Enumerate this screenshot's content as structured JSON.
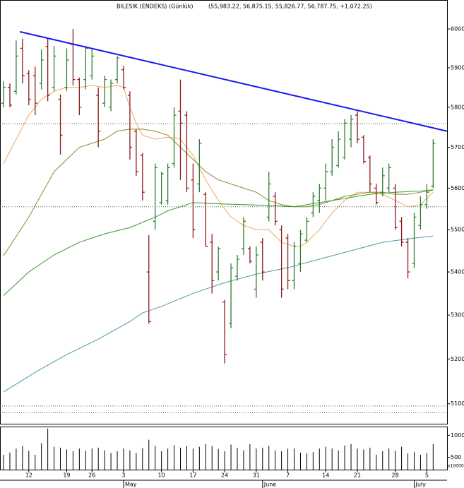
{
  "chart_data": {
    "type": "ohlc",
    "title": "BILESIK (ENDEKS) (Günlük)",
    "subtitle": "(55,983.22, 56,875.15, 55,826.77, 56,787.75, +1,072.25)",
    "categories": [
      null,
      null,
      null,
      null,
      "12",
      null,
      null,
      null,
      null,
      null,
      "19",
      null,
      null,
      null,
      "26",
      null,
      null,
      null,
      null,
      "3",
      null,
      null,
      null,
      null,
      null,
      "10",
      null,
      null,
      null,
      null,
      "17",
      null,
      null,
      null,
      null,
      "24",
      null,
      null,
      null,
      null,
      "31",
      null,
      null,
      null,
      null,
      "7",
      null,
      null,
      null,
      null,
      null,
      "14",
      null,
      null,
      null,
      null,
      "21",
      null,
      null,
      null,
      null,
      null,
      "28",
      null,
      null,
      null,
      null,
      "5",
      null
    ],
    "months": [
      {
        "label": "May",
        "at": 19
      },
      {
        "label": "June",
        "at": 41
      },
      {
        "label": "July",
        "at": 65
      }
    ],
    "open": [
      5810,
      5850,
      5840,
      5950,
      5885,
      5880,
      5860,
      5955,
      5850,
      5820,
      5850,
      5960,
      5870,
      5870,
      5880,
      5830,
      5810,
      5800,
      5870,
      5895,
      5830,
      5740,
      5680,
      5400,
      5520,
      5565,
      5570,
      5660,
      5790,
      5780,
      5620,
      5610,
      5585,
      5470,
      5400,
      5330,
      5280,
      5390,
      5455,
      5455,
      5360,
      5470,
      5530,
      5580,
      5500,
      5480,
      5380,
      5420,
      5475,
      5540,
      5570,
      5600,
      5640,
      5655,
      5675,
      5720,
      5780,
      5725,
      5675,
      5600,
      5590,
      5600,
      5600,
      5520,
      5470,
      5420,
      5510,
      5560,
      5605
    ],
    "high": [
      5865,
      5860,
      5970,
      5975,
      5894,
      5903,
      5947,
      5975,
      5956,
      5832,
      5950,
      6000,
      5875,
      5956,
      5947,
      5850,
      5880,
      5870,
      5930,
      5905,
      5840,
      5745,
      5686,
      5487,
      5660,
      5640,
      5660,
      5800,
      5870,
      5790,
      5660,
      5720,
      5590,
      5490,
      5460,
      5335,
      5420,
      5440,
      5530,
      5460,
      5460,
      5480,
      5640,
      5590,
      5510,
      5490,
      5470,
      5500,
      5530,
      5590,
      5610,
      5660,
      5720,
      5740,
      5770,
      5780,
      5790,
      5730,
      5680,
      5610,
      5650,
      5660,
      5610,
      5530,
      5480,
      5540,
      5580,
      5610,
      5720
    ],
    "low": [
      5800,
      5800,
      5832,
      5860,
      5805,
      5780,
      5845,
      5815,
      5841,
      5682,
      5841,
      5855,
      5780,
      5845,
      5870,
      5700,
      5800,
      5790,
      5860,
      5845,
      5670,
      5630,
      5570,
      5280,
      5500,
      5560,
      5560,
      5650,
      5620,
      5590,
      5480,
      5590,
      5460,
      5350,
      5380,
      5190,
      5270,
      5380,
      5440,
      5420,
      5340,
      5380,
      5520,
      5510,
      5340,
      5360,
      5360,
      5400,
      5470,
      5530,
      5540,
      5570,
      5630,
      5650,
      5670,
      5700,
      5710,
      5660,
      5590,
      5560,
      5580,
      5590,
      5500,
      5460,
      5385,
      5410,
      5500,
      5550,
      5600
    ],
    "close": [
      5850,
      5805,
      5930,
      5880,
      5820,
      5810,
      5920,
      5830,
      5930,
      5730,
      5920,
      5870,
      5800,
      5950,
      5930,
      5740,
      5870,
      5860,
      5925,
      5850,
      5700,
      5640,
      5590,
      5285,
      5650,
      5635,
      5650,
      5780,
      5760,
      5600,
      5500,
      5710,
      5460,
      5380,
      5455,
      5210,
      5410,
      5430,
      5520,
      5425,
      5440,
      5400,
      5610,
      5520,
      5360,
      5380,
      5460,
      5490,
      5520,
      5580,
      5600,
      5640,
      5700,
      5720,
      5760,
      5770,
      5720,
      5665,
      5610,
      5565,
      5630,
      5650,
      5505,
      5470,
      5400,
      5530,
      5560,
      5590,
      5710
    ],
    "up_color": "#2e7d2e",
    "down_color": "#8b1a1a",
    "xlim": [
      -0.56,
      70.2
    ],
    "ylim": [
      5056,
      6076
    ],
    "log_scale": true,
    "yticks": [
      5100,
      5200,
      5300,
      5400,
      5500,
      5600,
      5700,
      5800,
      5900,
      6000
    ],
    "overlays": [
      {
        "color": "#f4a460",
        "x": [
          0,
          2,
          4,
          6,
          8,
          10,
          12,
          14,
          16,
          18,
          19,
          20,
          21,
          22,
          24,
          26,
          28,
          30,
          32,
          34,
          36,
          38,
          40,
          42,
          44,
          46,
          47,
          48,
          50,
          52,
          54,
          56,
          58,
          60,
          62,
          64,
          66,
          68
        ],
        "values": [
          5660,
          5720,
          5780,
          5820,
          5840,
          5850,
          5850,
          5855,
          5850,
          5855,
          5850,
          5800,
          5760,
          5730,
          5720,
          5725,
          5720,
          5680,
          5620,
          5570,
          5530,
          5510,
          5500,
          5500,
          5470,
          5460,
          5460,
          5470,
          5500,
          5540,
          5570,
          5590,
          5590,
          5585,
          5570,
          5555,
          5560,
          5590
        ]
      },
      {
        "color": "#8b8b2a",
        "x": [
          0,
          4,
          8,
          12,
          16,
          18,
          20,
          22,
          24,
          26,
          28,
          30,
          32,
          34,
          36,
          38,
          40,
          42,
          44,
          46,
          48,
          50,
          52,
          54,
          56,
          58,
          60,
          62,
          64,
          66,
          68
        ],
        "values": [
          5438,
          5530,
          5640,
          5700,
          5720,
          5740,
          5745,
          5745,
          5740,
          5730,
          5700,
          5670,
          5640,
          5620,
          5610,
          5600,
          5590,
          5570,
          5560,
          5555,
          5555,
          5560,
          5570,
          5580,
          5585,
          5590,
          5590,
          5585,
          5585,
          5590,
          5595
        ]
      },
      {
        "color": "#2f9a2f",
        "x": [
          0,
          4,
          8,
          12,
          16,
          20,
          24,
          26,
          28,
          30,
          34,
          38,
          42,
          46,
          50,
          54,
          58,
          62,
          66,
          68
        ],
        "values": [
          5345,
          5400,
          5440,
          5470,
          5490,
          5505,
          5530,
          5545,
          5555,
          5565,
          5562,
          5560,
          5558,
          5555,
          5565,
          5575,
          5585,
          5590,
          5593,
          5596
        ]
      },
      {
        "color": "#4a9aaa",
        "x": [
          0,
          5,
          10,
          15,
          20,
          22,
          25,
          30,
          35,
          40,
          45,
          50,
          55,
          60,
          65,
          68
        ],
        "values": [
          5126,
          5170,
          5210,
          5245,
          5285,
          5305,
          5320,
          5350,
          5375,
          5395,
          5410,
          5430,
          5450,
          5470,
          5480,
          5485
        ]
      }
    ],
    "trendline": {
      "color": "#1a1aee",
      "x": [
        2.57,
        70.2
      ],
      "values": [
        5993,
        5740
      ]
    },
    "levels": [
      5759,
      5555,
      5095,
      5080
    ],
    "level_color": "#555",
    "volume": {
      "values": [
        560,
        610,
        700,
        760,
        650,
        560,
        820,
        1150,
        740,
        720,
        680,
        640,
        700,
        650,
        700,
        720,
        660,
        600,
        640,
        700,
        660,
        600,
        710,
        900,
        760,
        640,
        700,
        780,
        720,
        760,
        700,
        740,
        800,
        760,
        690,
        640,
        790,
        720,
        660,
        800,
        700,
        720,
        760,
        660,
        640,
        700,
        700,
        610,
        590,
        620,
        700,
        740,
        700,
        660,
        770,
        800,
        700,
        680,
        720,
        560,
        640,
        700,
        650,
        740,
        590,
        620,
        560,
        600,
        800
      ],
      "ylim": [
        225,
        1180
      ],
      "yticks": [
        500,
        1000
      ],
      "unit_label": "x100000",
      "color": "#000"
    }
  }
}
